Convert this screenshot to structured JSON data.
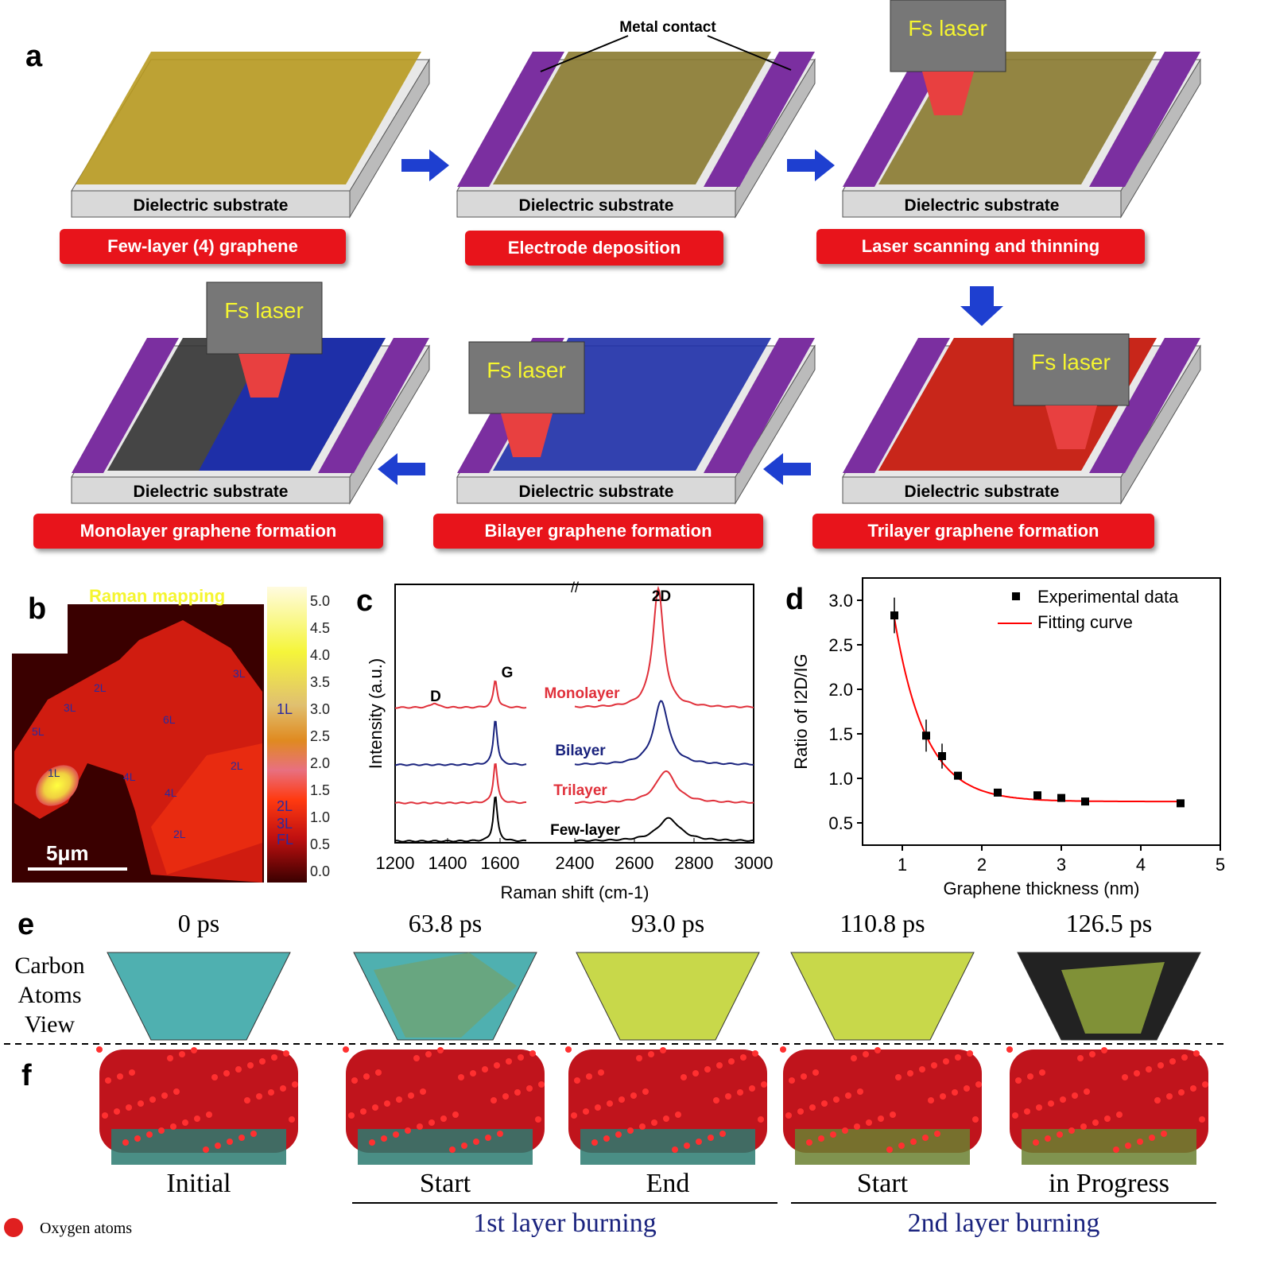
{
  "panel_labels": [
    "a",
    "b",
    "c",
    "d",
    "e",
    "f"
  ],
  "panel_a": {
    "substrate_label": "Dielectric substrate",
    "metal_contact": "Metal contact",
    "laser_label": "Fs laser",
    "steps": [
      "Few-layer (4) graphene",
      "Electrode deposition",
      "Laser scanning and thinning",
      "Trilayer graphene formation",
      "Bilayer graphene formation",
      "Monolayer graphene formation"
    ],
    "colors": {
      "substrate": "#d9d9d9",
      "electrode": "#7b2fa0",
      "graphene_red": "#c8261a",
      "graphene_blue": "#1e2fa8",
      "graphene_black": "#222222",
      "arrow": "#1e3fd0",
      "pill": "#e8141b"
    }
  },
  "panel_b": {
    "title": "Raman mapping",
    "scale_bar": "5μm",
    "region_labels": [
      "2L",
      "3L",
      "5L",
      "1L",
      "6L",
      "3L",
      "2L",
      "4L",
      "4L",
      "2L"
    ],
    "colorbar_ticks": [
      "5.0",
      "4.5",
      "4.0",
      "3.5",
      "3.0",
      "2.5",
      "2.0",
      "1.5",
      "1.0",
      "0.5",
      "0.0"
    ],
    "colorbar_labels": [
      "1L",
      "2L",
      "3L",
      "FL"
    ]
  },
  "chart_data": [
    {
      "type": "line",
      "panel": "c",
      "xlabel": "Raman shift (cm-1)",
      "ylabel": "Intensity (a.u.)",
      "x_ticks": [
        "1200",
        "1400",
        "1600",
        "2400",
        "2600",
        "2800",
        "3000"
      ],
      "axis_break": [
        1700,
        2400
      ],
      "peak_labels": [
        "D",
        "G",
        "2D"
      ],
      "series": [
        {
          "name": "Monolayer",
          "color": "#e0303a",
          "G_height": 0.3,
          "2D_height": 1.3,
          "2D_center": 2680,
          "2D_width": 22
        },
        {
          "name": "Bilayer",
          "color": "#1a237e",
          "G_height": 0.5,
          "2D_height": 0.7,
          "2D_center": 2690,
          "2D_width": 30
        },
        {
          "name": "Trilayer",
          "color": "#e0303a",
          "G_height": 0.45,
          "2D_height": 0.35,
          "2D_center": 2705,
          "2D_width": 40
        },
        {
          "name": "Few-layer",
          "color": "#000000",
          "G_height": 0.5,
          "2D_height": 0.25,
          "2D_center": 2715,
          "2D_width": 45
        }
      ]
    },
    {
      "type": "scatter",
      "panel": "d",
      "xlabel": "Graphene thickness (nm)",
      "ylabel": "Ratio of I2D/IG",
      "xlim": [
        0.5,
        5
      ],
      "ylim": [
        0.25,
        3.25
      ],
      "x_ticks": [
        "1",
        "2",
        "3",
        "4",
        "5"
      ],
      "y_ticks": [
        "0.5",
        "1.0",
        "1.5",
        "2.0",
        "2.5",
        "3.0"
      ],
      "legend": [
        "Experimental data",
        "Fitting curve"
      ],
      "legend_position": "top-right",
      "points": [
        {
          "x": 0.9,
          "y": 2.83,
          "err": 0.2
        },
        {
          "x": 1.3,
          "y": 1.48,
          "err": 0.18
        },
        {
          "x": 1.5,
          "y": 1.25,
          "err": 0.14
        },
        {
          "x": 1.7,
          "y": 1.03,
          "err": 0
        },
        {
          "x": 2.2,
          "y": 0.84,
          "err": 0
        },
        {
          "x": 2.7,
          "y": 0.81,
          "err": 0
        },
        {
          "x": 3.0,
          "y": 0.78,
          "err": 0
        },
        {
          "x": 3.3,
          "y": 0.74,
          "err": 0
        },
        {
          "x": 4.5,
          "y": 0.72,
          "err": 0
        }
      ],
      "fit": {
        "y0": 0.74,
        "A": 2.06,
        "x0": 0.9,
        "t": 0.39,
        "color": "#ff0000"
      }
    }
  ],
  "panel_e": {
    "times": [
      "0 ps",
      "63.8 ps",
      "93.0 ps",
      "110.8 ps",
      "126.5 ps"
    ],
    "side_label": [
      "Carbon",
      "Atoms",
      "View"
    ]
  },
  "panel_f": {
    "stages": [
      "Initial",
      "Start",
      "End",
      "Start",
      "in Progress"
    ],
    "groups": [
      "1st layer burning",
      "2nd layer burning"
    ],
    "legend": "Oxygen atoms"
  }
}
